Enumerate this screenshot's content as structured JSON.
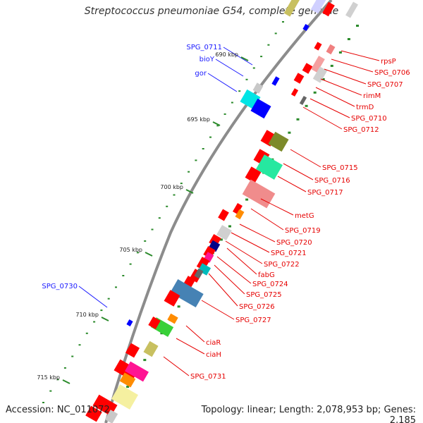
{
  "title": "Streptococcus pneumoniae G54, complete genome",
  "footer": {
    "accession": "Accession: NC_011072",
    "summary": "Topology: linear; Length: 2,078,953 bp; Genes: 2,185"
  },
  "scale_ticks": [
    {
      "label": "690 kbp",
      "kbp": 690
    },
    {
      "label": "695 kbp",
      "kbp": 695
    },
    {
      "label": "700 kbp",
      "kbp": 700
    },
    {
      "label": "705 kbp",
      "kbp": 705
    },
    {
      "label": "710 kbp",
      "kbp": 710
    },
    {
      "label": "715 kbp",
      "kbp": 715
    }
  ],
  "left_gene_labels": [
    {
      "label": "SPG_0711",
      "color": "#1a1aff"
    },
    {
      "label": "bioY",
      "color": "#1a1aff"
    },
    {
      "label": "gor",
      "color": "#1a1aff"
    },
    {
      "label": "SPG_0730",
      "color": "#1a1aff"
    }
  ],
  "right_gene_labels": [
    {
      "label": "rpsP",
      "color": "#e60000"
    },
    {
      "label": "SPG_0706",
      "color": "#e60000"
    },
    {
      "label": "SPG_0707",
      "color": "#e60000"
    },
    {
      "label": "rimM",
      "color": "#e60000"
    },
    {
      "label": "trmD",
      "color": "#e60000"
    },
    {
      "label": "SPG_0710",
      "color": "#e60000"
    },
    {
      "label": "SPG_0712",
      "color": "#e60000"
    },
    {
      "label": "SPG_0715",
      "color": "#e60000"
    },
    {
      "label": "SPG_0716",
      "color": "#e60000"
    },
    {
      "label": "SPG_0717",
      "color": "#e60000"
    },
    {
      "label": "metG",
      "color": "#e60000"
    },
    {
      "label": "SPG_0719",
      "color": "#e60000"
    },
    {
      "label": "SPG_0720",
      "color": "#e60000"
    },
    {
      "label": "SPG_0721",
      "color": "#e60000"
    },
    {
      "label": "SPG_0722",
      "color": "#e60000"
    },
    {
      "label": "fabG",
      "color": "#e60000"
    },
    {
      "label": "SPG_0724",
      "color": "#e60000"
    },
    {
      "label": "SPG_0725",
      "color": "#e60000"
    },
    {
      "label": "SPG_0726",
      "color": "#e60000"
    },
    {
      "label": "SPG_0727",
      "color": "#e60000"
    },
    {
      "label": "ciaR",
      "color": "#e60000"
    },
    {
      "label": "ciaH",
      "color": "#e60000"
    },
    {
      "label": "SPG_0731",
      "color": "#e60000"
    }
  ],
  "colors": {
    "backbone": "#8c8c8c",
    "forward_strand": "#ff0000",
    "reverse_strand": "#0000ff",
    "tick_dot": "#2a8a2a"
  }
}
